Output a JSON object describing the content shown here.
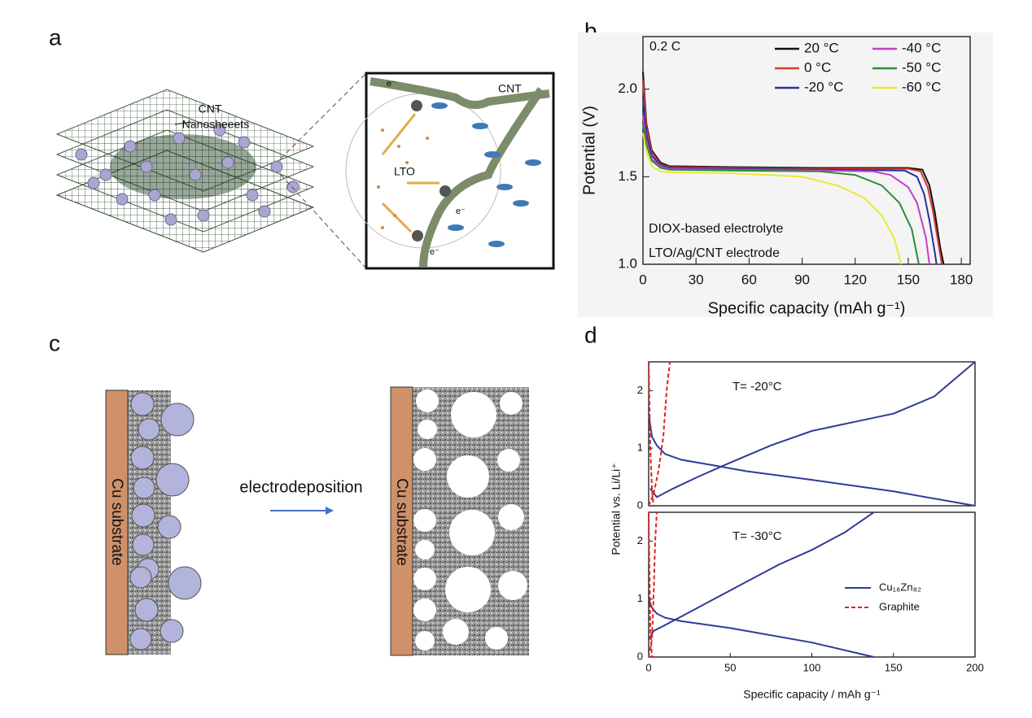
{
  "panel_labels": [
    "a",
    "b",
    "c",
    "d"
  ],
  "diagram_a": {
    "cnt_label": "CNT",
    "nanosheets_label": "Nanosheeets",
    "inset_cnt": "CNT",
    "inset_lto": "LTO",
    "electron": "e⁻"
  },
  "diagram_c": {
    "substrate_left": "Cu substrate",
    "substrate_right": "Cu substrate",
    "process": "electrodeposition"
  },
  "chart_data": [
    {
      "type": "line",
      "xlabel": "Specific capacity (mAh g⁻¹)",
      "ylabel": "Potential (V)",
      "xlim": [
        0,
        185
      ],
      "ylim": [
        1.0,
        2.3
      ],
      "xticks": [
        0,
        30,
        60,
        90,
        120,
        150,
        180
      ],
      "yticks": [
        {
          "value": 1.0,
          "label": "1.0"
        },
        {
          "value": 1.5,
          "label": "1.5"
        },
        {
          "value": 2.0,
          "label": "2.0"
        }
      ],
      "annotations": [
        "0.2 C",
        "DIOX-based electrolyte",
        "LTO/Ag/CNT electrode"
      ],
      "legend": "upper right",
      "series": [
        {
          "name": "20 °C",
          "color": "#111111",
          "x": [
            0,
            2,
            5,
            10,
            15,
            50,
            100,
            150,
            158,
            162,
            165,
            168,
            170
          ],
          "values": [
            2.1,
            1.8,
            1.65,
            1.58,
            1.56,
            1.555,
            1.55,
            1.55,
            1.54,
            1.45,
            1.3,
            1.1,
            1.0
          ]
        },
        {
          "name": "0 °C",
          "color": "#d43a2f",
          "x": [
            0,
            2,
            5,
            10,
            15,
            50,
            100,
            150,
            157,
            161,
            164,
            167,
            169
          ],
          "values": [
            2.05,
            1.78,
            1.64,
            1.57,
            1.555,
            1.55,
            1.545,
            1.545,
            1.53,
            1.44,
            1.3,
            1.12,
            1.0
          ]
        },
        {
          "name": "-20 °C",
          "color": "#2b2f9e",
          "x": [
            0,
            2,
            5,
            10,
            15,
            50,
            100,
            148,
            155,
            159,
            162,
            165,
            166
          ],
          "values": [
            1.95,
            1.74,
            1.62,
            1.565,
            1.55,
            1.545,
            1.54,
            1.535,
            1.5,
            1.4,
            1.25,
            1.07,
            1.0
          ]
        },
        {
          "name": "-40 °C",
          "color": "#c23fc9",
          "x": [
            0,
            2,
            5,
            10,
            15,
            50,
            100,
            130,
            140,
            150,
            155,
            160,
            162
          ],
          "values": [
            1.85,
            1.7,
            1.6,
            1.56,
            1.545,
            1.54,
            1.535,
            1.53,
            1.51,
            1.44,
            1.35,
            1.15,
            1.0
          ]
        },
        {
          "name": "-50 °C",
          "color": "#2e8b3a",
          "x": [
            0,
            2,
            5,
            10,
            15,
            50,
            100,
            120,
            135,
            145,
            152,
            156
          ],
          "values": [
            1.8,
            1.68,
            1.59,
            1.55,
            1.54,
            1.535,
            1.53,
            1.51,
            1.45,
            1.35,
            1.2,
            1.0
          ]
        },
        {
          "name": "-60 °C",
          "color": "#e9e83a",
          "x": [
            0,
            2,
            5,
            10,
            15,
            50,
            90,
            110,
            125,
            135,
            142,
            146
          ],
          "values": [
            1.75,
            1.64,
            1.56,
            1.53,
            1.525,
            1.52,
            1.5,
            1.45,
            1.38,
            1.28,
            1.15,
            1.0
          ]
        }
      ]
    },
    {
      "type": "line",
      "annotations": [
        "T= -20°C"
      ],
      "ylabel": "Potential vs. Li/Li⁺",
      "xlim": [
        0,
        200
      ],
      "ylim": [
        0,
        2.5
      ],
      "yticks": [
        0,
        1,
        2
      ],
      "series": [
        {
          "color": "#2e3b9a",
          "dash": false,
          "branches": [
            {
              "x": [
                0,
                2,
                5,
                10,
                20,
                40,
                60,
                100,
                150,
                200
              ],
              "values": [
                1.6,
                1.2,
                1.05,
                0.9,
                0.8,
                0.7,
                0.6,
                0.45,
                0.25,
                0
              ]
            },
            {
              "x": [
                1,
                5,
                15,
                30,
                50,
                75,
                100,
                125,
                150,
                175,
                200
              ],
              "values": [
                0.3,
                0.15,
                0.3,
                0.5,
                0.75,
                1.05,
                1.3,
                1.45,
                1.6,
                1.9,
                2.5
              ]
            }
          ]
        },
        {
          "color": "#e02020",
          "dash": true,
          "branches": [
            {
              "x": [
                0,
                1,
                2,
                3
              ],
              "values": [
                2.5,
                1.0,
                0.3,
                0
              ]
            },
            {
              "x": [
                0,
                3,
                6,
                9,
                11,
                13
              ],
              "values": [
                0,
                0.2,
                0.6,
                1.2,
                2.0,
                2.5
              ]
            }
          ]
        }
      ]
    },
    {
      "type": "line",
      "annotations": [
        "T= -30°C"
      ],
      "xlabel": "Specific capacity / mAh g⁻¹",
      "xlim": [
        0,
        200
      ],
      "ylim": [
        0,
        2.5
      ],
      "xticks": [
        0,
        50,
        100,
        150,
        200
      ],
      "yticks": [
        0,
        1,
        2
      ],
      "legend": "lower right",
      "series": [
        {
          "name": "Cu₁₈Zn₈₂",
          "color": "#2e3b9a",
          "dash": false,
          "branches": [
            {
              "x": [
                0,
                2,
                5,
                10,
                20,
                50,
                100,
                138
              ],
              "values": [
                1.0,
                0.85,
                0.75,
                0.68,
                0.62,
                0.5,
                0.25,
                0
              ]
            },
            {
              "x": [
                0,
                3,
                10,
                20,
                40,
                60,
                80,
                100,
                120,
                138
              ],
              "values": [
                0.3,
                0.45,
                0.55,
                0.7,
                1.0,
                1.3,
                1.6,
                1.85,
                2.15,
                2.5
              ]
            }
          ]
        },
        {
          "name": "Graphite",
          "color": "#e02020",
          "dash": true,
          "branches": [
            {
              "x": [
                0,
                1,
                2
              ],
              "values": [
                2.5,
                0.5,
                0
              ]
            },
            {
              "x": [
                0,
                2,
                3,
                4,
                5
              ],
              "values": [
                0,
                0.3,
                1.0,
                2.0,
                2.5
              ]
            }
          ]
        }
      ]
    }
  ]
}
